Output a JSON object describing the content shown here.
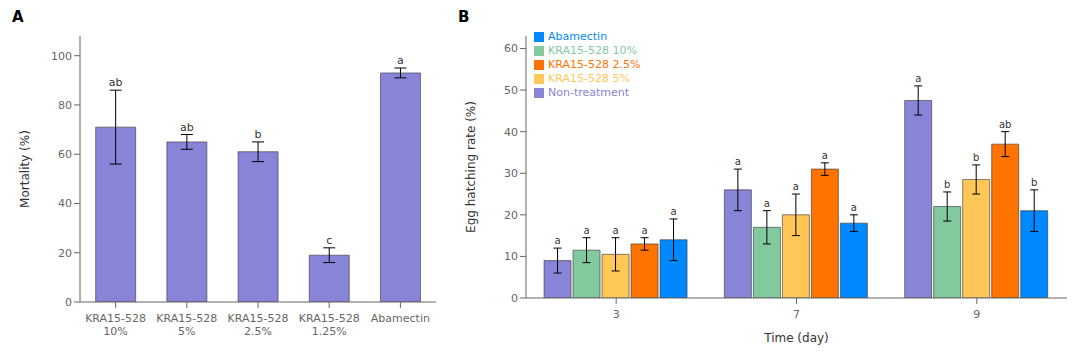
{
  "chart_data": [
    {
      "type": "bar",
      "title": "A",
      "categories": [
        "KRA15-528\n10%",
        "KRA15-528\n5%",
        "KRA15-528\n2.5%",
        "KRA15-528\n1.25%",
        "Abamectin"
      ],
      "values": [
        71,
        65,
        61,
        19,
        93
      ],
      "errors": [
        15,
        3,
        4,
        3,
        2
      ],
      "labels": [
        "ab",
        "ab",
        "b",
        "c",
        "a"
      ],
      "color": "#8884d8",
      "ylabel": "Mortality (%)",
      "ylim": [
        0,
        108
      ],
      "yticks": [
        0,
        20,
        40,
        60,
        80,
        100
      ],
      "grid": false
    },
    {
      "type": "bar",
      "title": "B",
      "categories": [
        "3",
        "7",
        "9"
      ],
      "series": [
        {
          "name": "Non-treatment",
          "color": "#8884d8",
          "values": [
            9,
            26,
            47.5
          ],
          "errors": [
            3,
            5,
            3.5
          ],
          "labels": [
            "a",
            "a",
            "a"
          ]
        },
        {
          "name": "KRA15-528 10%",
          "color": "#82ca9d",
          "values": [
            11.5,
            17,
            22
          ],
          "errors": [
            3,
            4,
            3.5
          ],
          "labels": [
            "a",
            "a",
            "b"
          ]
        },
        {
          "name": "KRA15-528 5%",
          "color": "#ffc658",
          "values": [
            10.5,
            20,
            28.5
          ],
          "errors": [
            4,
            5,
            3.5
          ],
          "labels": [
            "a",
            "a",
            "b"
          ]
        },
        {
          "name": "KRA15-528 2.5%",
          "color": "#ff7300",
          "values": [
            13,
            31,
            37
          ],
          "errors": [
            1.5,
            1.5,
            3
          ],
          "labels": [
            "a",
            "a",
            "ab"
          ]
        },
        {
          "name": "Abamectin",
          "color": "#0088fe",
          "values": [
            14,
            18,
            21
          ],
          "errors": [
            5,
            2,
            5
          ],
          "labels": [
            "a",
            "a",
            "b"
          ]
        }
      ],
      "xlabel": "Time (day)",
      "ylabel": "Egg hatching rate (%)",
      "ylim": [
        0,
        63
      ],
      "yticks": [
        0,
        10,
        20,
        30,
        40,
        50,
        60
      ],
      "grid": false,
      "legend": "upper left"
    }
  ]
}
